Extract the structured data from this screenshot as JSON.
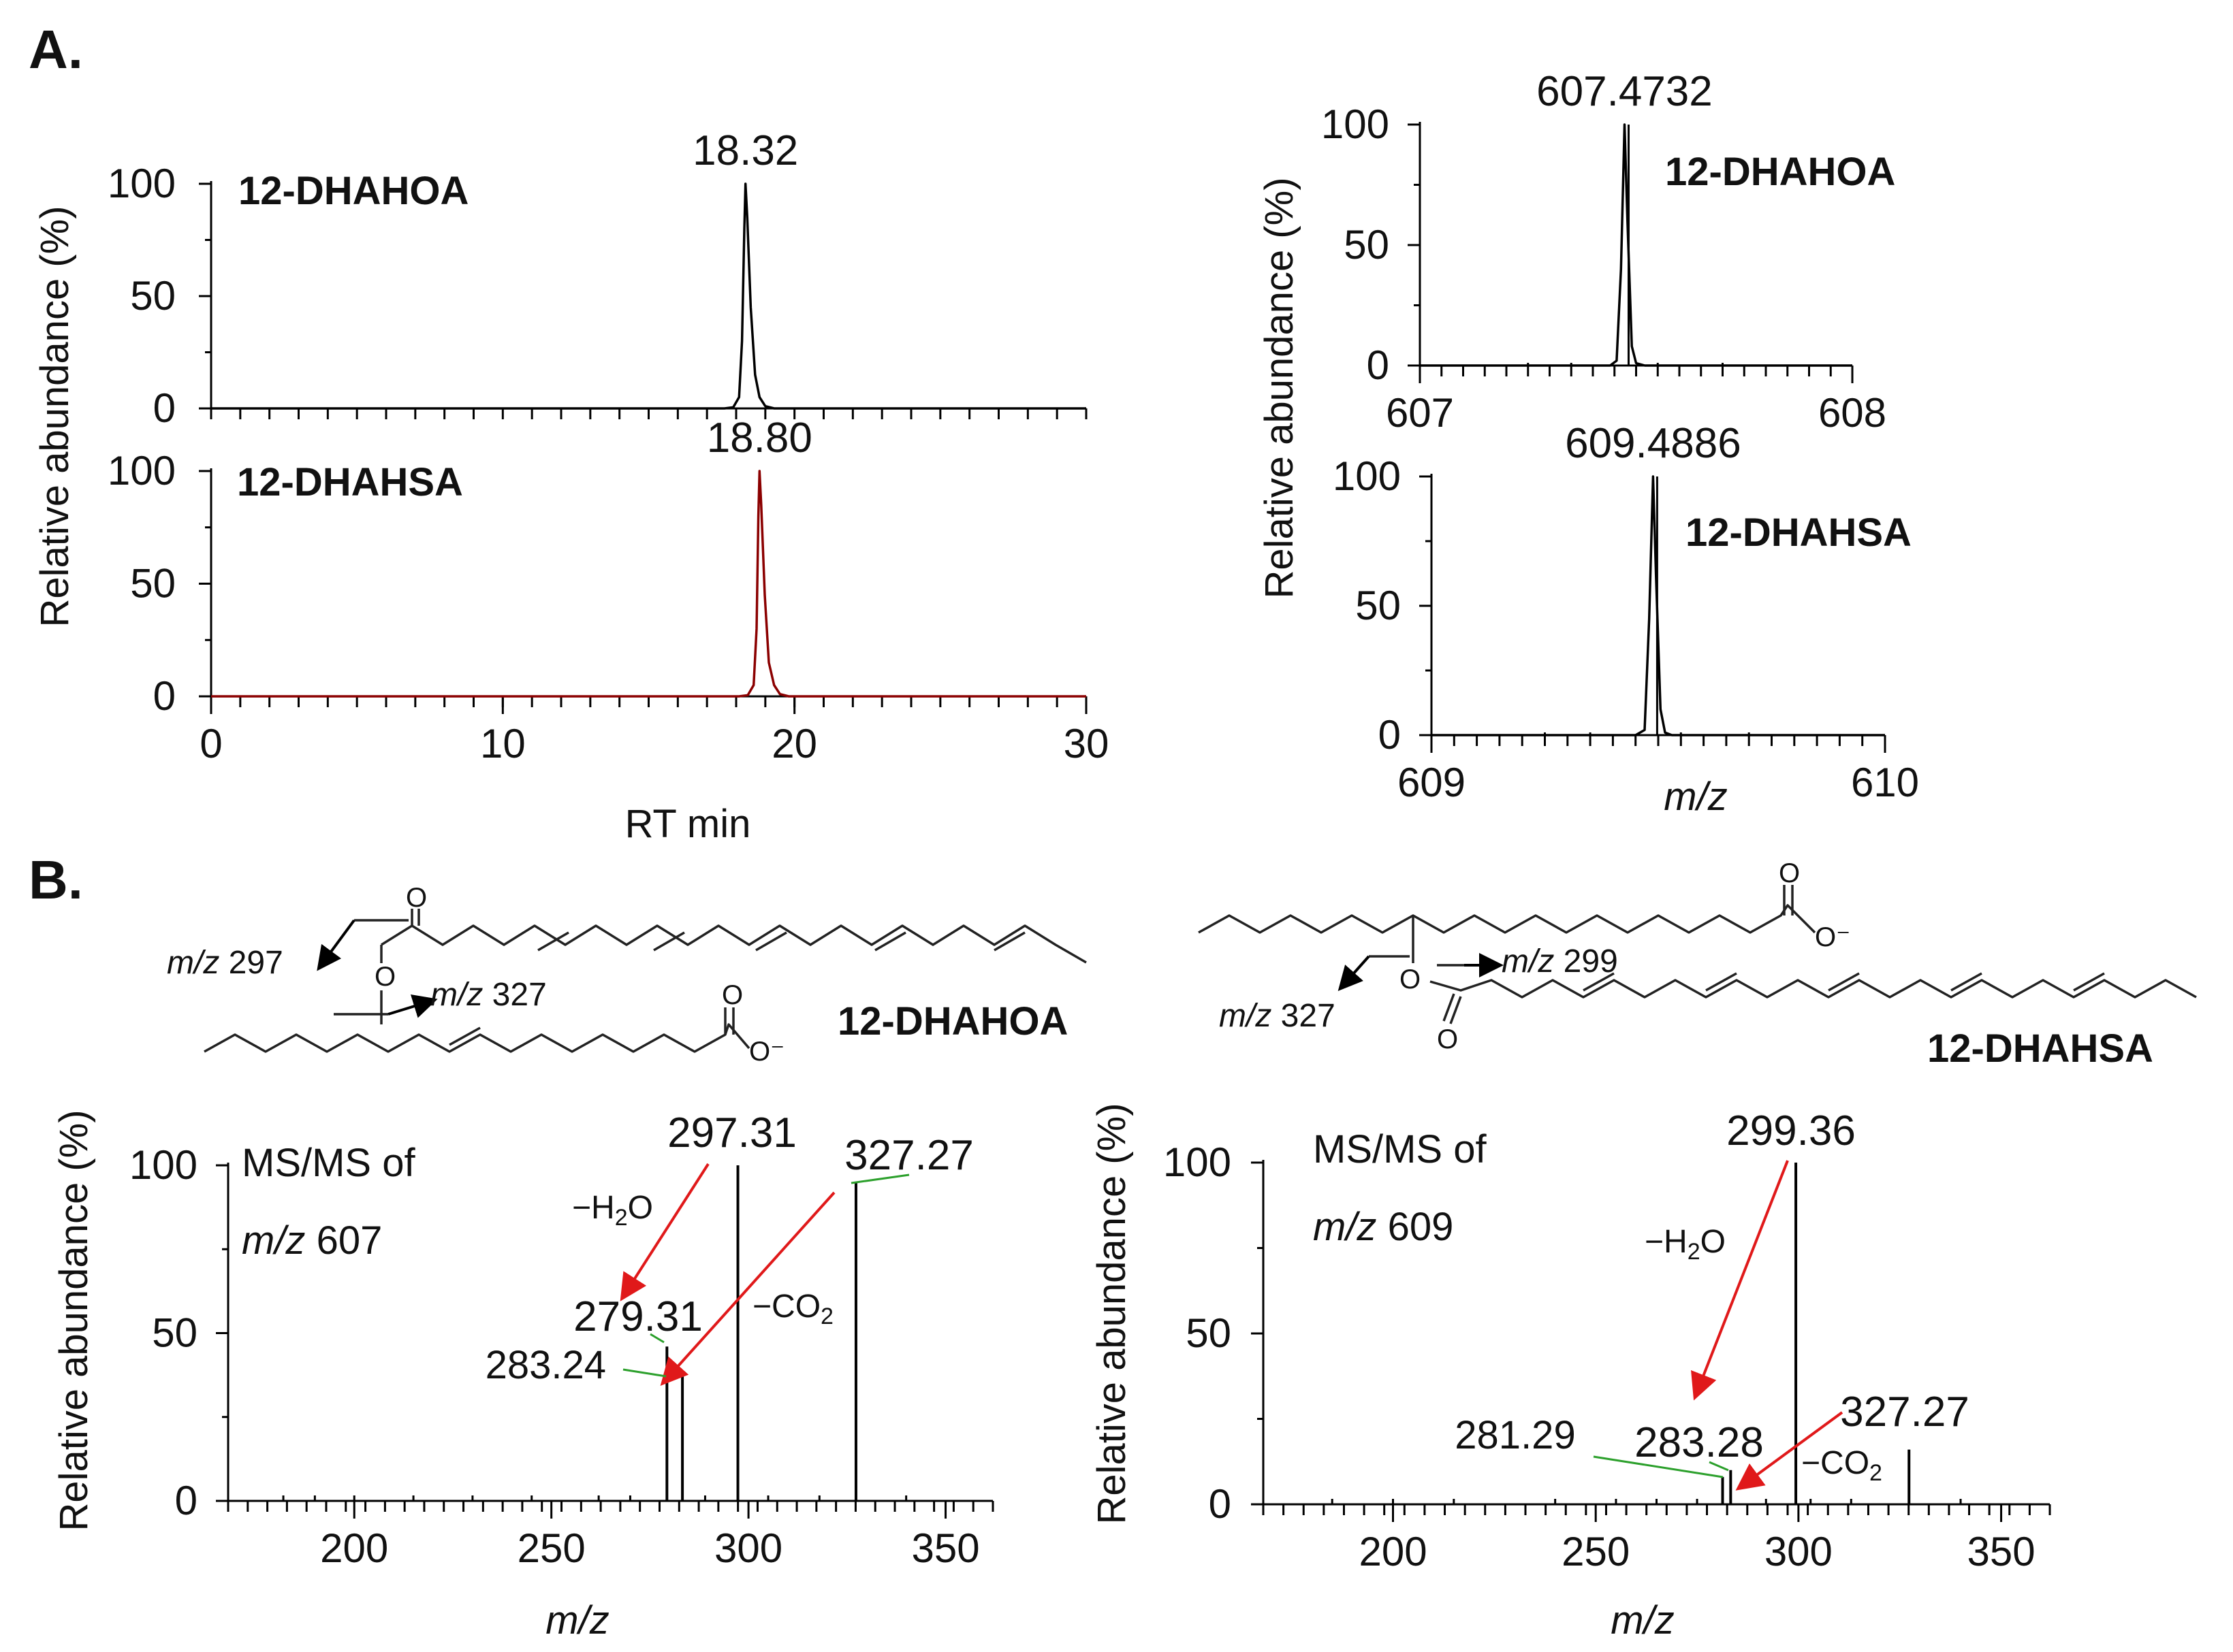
{
  "panel_labels": {
    "a": "A.",
    "b": "B."
  },
  "chart_data": [
    {
      "id": "chrom-dhahoa",
      "type": "line",
      "compound": "12-DHAHOA",
      "peak_label": "18.32",
      "x": [
        0,
        17.6,
        17.9,
        18.1,
        18.2,
        18.28,
        18.32,
        18.38,
        18.5,
        18.65,
        18.8,
        19.0,
        19.3,
        30
      ],
      "y": [
        0,
        0,
        0.5,
        5,
        30,
        80,
        100,
        85,
        45,
        15,
        5,
        1,
        0,
        0
      ],
      "xlim": [
        0,
        30
      ],
      "ylim": [
        0,
        100
      ],
      "yticks": [
        "100",
        "50",
        "0"
      ],
      "xticks": [],
      "line_color": "#000000"
    },
    {
      "id": "chrom-dhahsa",
      "type": "line",
      "compound": "12-DHAHSA",
      "peak_label": "18.80",
      "x": [
        0,
        18.1,
        18.4,
        18.6,
        18.7,
        18.76,
        18.8,
        18.86,
        18.98,
        19.12,
        19.3,
        19.5,
        19.8,
        30
      ],
      "y": [
        0,
        0,
        0.5,
        5,
        30,
        80,
        100,
        85,
        45,
        15,
        5,
        1,
        0,
        0
      ],
      "xlim": [
        0,
        30
      ],
      "ylim": [
        0,
        100
      ],
      "yticks": [
        "100",
        "50",
        "0"
      ],
      "xticks": [
        "0",
        "10",
        "20",
        "30"
      ],
      "xlabel": "RT min",
      "line_color": "#8b0000"
    },
    {
      "id": "ms1-dhahoa",
      "type": "line",
      "compound": "12-DHAHOA",
      "peak_label": "607.4732",
      "x": [
        607,
        607.44,
        607.455,
        607.465,
        607.4732,
        607.48,
        607.49,
        607.5,
        607.52,
        608
      ],
      "y": [
        0,
        0,
        2,
        40,
        100,
        60,
        8,
        1,
        0,
        0
      ],
      "xlim": [
        607,
        608
      ],
      "ylim": [
        0,
        100
      ],
      "yticks": [
        "100",
        "50",
        "0"
      ],
      "xticks": [
        "607",
        "608"
      ]
    },
    {
      "id": "ms1-dhahsa",
      "type": "line",
      "compound": "12-DHAHSA",
      "peak_label": "609.4886",
      "x": [
        609,
        609.45,
        609.47,
        609.48,
        609.4886,
        609.495,
        609.505,
        609.515,
        609.53,
        610
      ],
      "y": [
        0,
        0,
        2,
        45,
        100,
        62,
        10,
        1,
        0,
        0
      ],
      "xlim": [
        609,
        610
      ],
      "ylim": [
        0,
        100
      ],
      "yticks": [
        "100",
        "50",
        "0"
      ],
      "xticks": [
        "609",
        "610"
      ],
      "xlabel": "m/z"
    },
    {
      "id": "msms-607",
      "type": "bar",
      "title_line1": "MS/MS of",
      "title_line2_italic": "m/z",
      "title_line2_value": "607",
      "x": [
        279.31,
        283.24,
        297.31,
        327.27
      ],
      "y": [
        46,
        38,
        100,
        95
      ],
      "minor_peaks": [
        182,
        190,
        200,
        215,
        230,
        245,
        262,
        270,
        289,
        305,
        318,
        340
      ],
      "xlim": [
        168,
        362
      ],
      "ylim": [
        0,
        100
      ],
      "yticks": [
        "100",
        "50",
        "0"
      ],
      "xticks": [
        "200",
        "250",
        "300",
        "350"
      ],
      "xlabel": "m/z"
    },
    {
      "id": "msms-609",
      "type": "bar",
      "title_line1": "MS/MS of",
      "title_line2_italic": "m/z",
      "title_line2_value": "609",
      "x": [
        281.29,
        283.28,
        299.36,
        327.27
      ],
      "y": [
        8,
        10,
        100,
        16
      ],
      "minor_peaks": [
        185,
        200,
        215,
        240,
        255,
        265,
        275,
        292,
        303,
        313,
        340
      ],
      "xlim": [
        168,
        362
      ],
      "ylim": [
        0,
        100
      ],
      "yticks": [
        "100",
        "50",
        "0"
      ],
      "xticks": [
        "200",
        "250",
        "300",
        "350"
      ],
      "xlabel": "m/z"
    }
  ],
  "labels": {
    "ylabel": "Relative abundance  (%)",
    "xlabel_rt": "RT min",
    "mz_italic": "m/z"
  },
  "msms_607": {
    "peak_297": "297.31",
    "peak_327": "327.27",
    "peak_279": "279.31",
    "peak_283": "283.24",
    "loss_h2o": "−H",
    "sub_2": "2",
    "o": "O",
    "loss_co2": "−CO",
    "sub_co2": "2"
  },
  "msms_609": {
    "peak_299": "299.36",
    "peak_327": "327.27",
    "peak_283": "283.28",
    "peak_281": "281.29",
    "loss_h2o": "−H",
    "sub_2": "2",
    "o": "O",
    "loss_co2": "−CO",
    "sub_co2": "2"
  },
  "structures": {
    "dhahoa": {
      "name": "12-DHAHOA",
      "frag_a_mz": "m/z",
      "frag_a_val": "297",
      "frag_b_mz": "m/z",
      "frag_b_val": "327",
      "o": "O",
      "o_minus": "O⁻"
    },
    "dhahsa": {
      "name": "12-DHAHSA",
      "frag_a_mz": "m/z",
      "frag_a_val": "327",
      "frag_b_mz": "m/z",
      "frag_b_val": "299",
      "o": "O",
      "o_minus": "O⁻"
    }
  },
  "colors": {
    "arrow_red": "#e0191a",
    "leader_green": "#2ca02c",
    "trace_red": "#8b0000"
  }
}
